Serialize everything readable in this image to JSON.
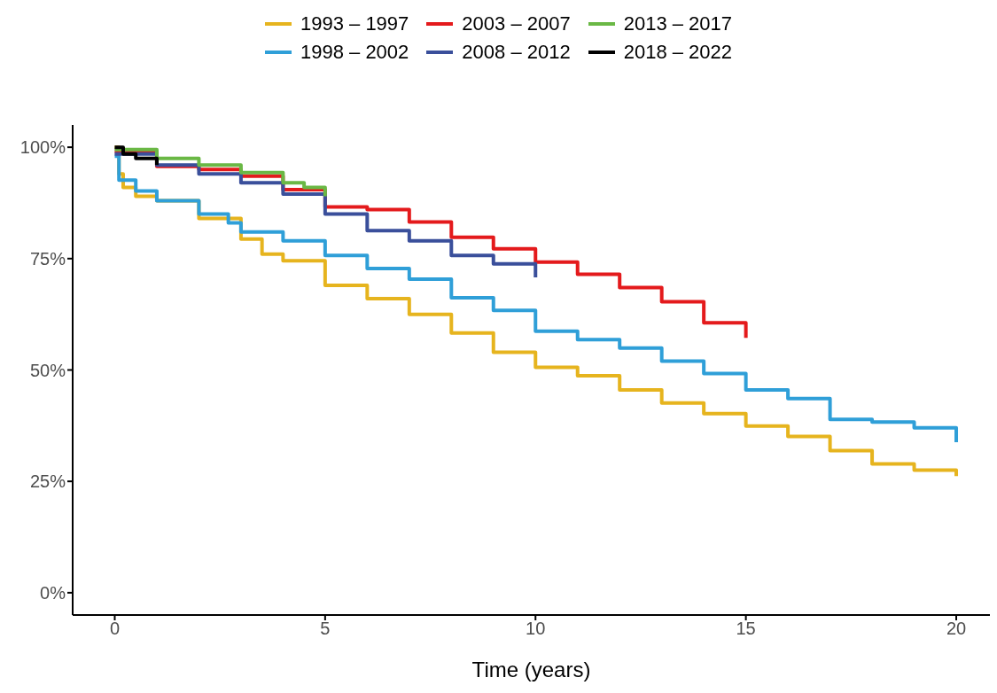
{
  "chart_data": {
    "type": "step",
    "xlabel": "Time (years)",
    "legend": "top",
    "line_style": "solid",
    "marker": "none",
    "grid": false,
    "xlim": [
      -1,
      20.8
    ],
    "xticks": [
      0,
      5,
      10,
      15,
      20
    ],
    "ylim": [
      -5,
      105
    ],
    "yticks": [
      {
        "value": 0,
        "label": "0%"
      },
      {
        "value": 25,
        "label": "25%"
      },
      {
        "value": 50,
        "label": "50%"
      },
      {
        "value": 75,
        "label": "75%"
      },
      {
        "value": 100,
        "label": "100%"
      }
    ],
    "series": [
      {
        "name": "1993 – 1997",
        "color": "#e6b41e",
        "x": [
          0,
          0.1,
          0.2,
          0.5,
          1,
          2,
          3,
          3.5,
          4,
          5,
          6,
          7,
          8,
          9,
          10,
          11,
          12,
          13,
          14,
          15,
          16,
          17,
          18,
          19,
          20
        ],
        "values": [
          100,
          94,
          91,
          89,
          88,
          84,
          79.4,
          76,
          74.5,
          69,
          66,
          62.5,
          58.3,
          54,
          50.6,
          48.7,
          45.5,
          42.6,
          40.2,
          37.4,
          35.1,
          31.9,
          28.9,
          27.5,
          26.2
        ]
      },
      {
        "name": "1998 – 2002",
        "color": "#2f9fd8",
        "x": [
          0,
          0.1,
          0.5,
          1,
          2,
          2.7,
          3,
          4,
          5,
          6,
          7,
          8,
          9,
          10,
          11,
          12,
          13,
          14,
          15,
          16,
          17,
          18,
          19,
          20
        ],
        "values": [
          98,
          92.6,
          90.2,
          88,
          85,
          83,
          81,
          79,
          75.7,
          72.8,
          70.4,
          66.2,
          63.4,
          58.7,
          56.8,
          54.9,
          52,
          49.2,
          45.5,
          43.6,
          38.9,
          38.3,
          37,
          33.8
        ]
      },
      {
        "name": "2003 – 2007",
        "color": "#e41a1c",
        "x": [
          0,
          1,
          2,
          3,
          4,
          5,
          6,
          7,
          8,
          9,
          10,
          11,
          12,
          13,
          14,
          15
        ],
        "values": [
          99,
          95.7,
          95,
          93.5,
          90.5,
          86.6,
          86,
          83.2,
          79.8,
          77.2,
          74.2,
          71.5,
          68.5,
          65.3,
          60.6,
          57.2
        ]
      },
      {
        "name": "2008 – 2012",
        "color": "#3a4f9b",
        "x": [
          0,
          1,
          2,
          3,
          4,
          5,
          6,
          7,
          8,
          9,
          10
        ],
        "values": [
          98.5,
          96,
          94,
          92,
          89.5,
          85,
          81.3,
          79,
          75.7,
          73.8,
          70.8
        ]
      },
      {
        "name": "2013 – 2017",
        "color": "#6ab845",
        "x": [
          0,
          1,
          2,
          3,
          4,
          4.5,
          5
        ],
        "values": [
          99.5,
          97.5,
          96,
          94.3,
          92,
          91,
          89
        ]
      },
      {
        "name": "2018 – 2022",
        "color": "#000000",
        "x": [
          0,
          0.2,
          0.5,
          1
        ],
        "values": [
          100,
          98.5,
          97.5,
          96
        ]
      }
    ]
  }
}
